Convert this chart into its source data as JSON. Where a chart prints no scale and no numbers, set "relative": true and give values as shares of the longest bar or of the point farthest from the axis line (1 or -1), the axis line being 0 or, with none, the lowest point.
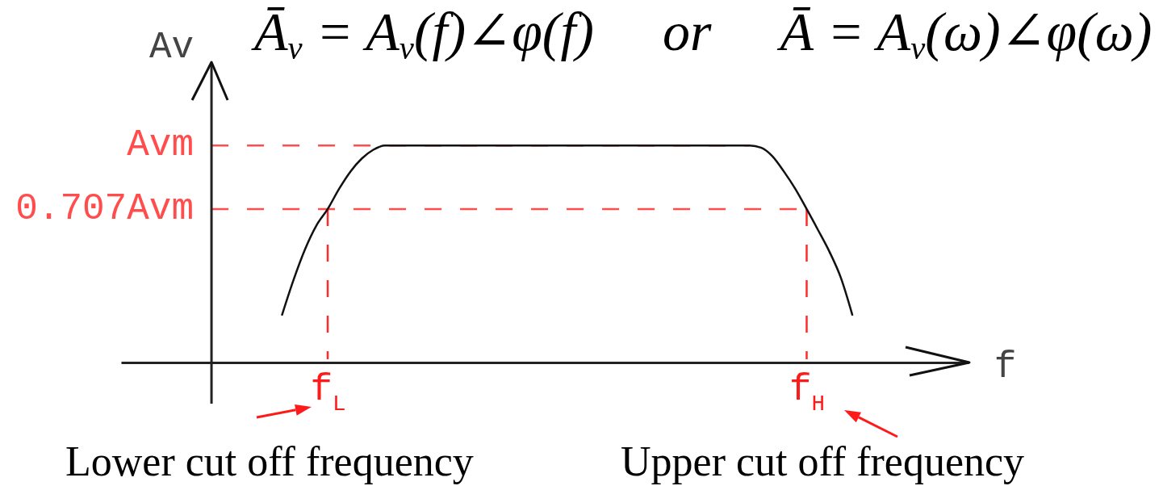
{
  "chart_data": {
    "type": "line",
    "relative": true,
    "title": "Ā$_{v}$ = A$_{v}$(f)∠φ(f)     or     Ā = A$_{v}$(ω)∠φ(ω)",
    "xlabel": "f",
    "ylabel": "Av",
    "categories": [
      null,
      null,
      null,
      null,
      "f$_{L}$",
      null,
      null,
      null,
      null,
      null,
      null,
      null,
      null,
      null,
      null,
      null,
      null,
      null,
      null,
      null,
      null,
      null,
      null,
      null,
      null,
      null,
      null,
      null,
      null,
      null,
      null,
      null,
      null,
      null,
      null,
      null,
      null,
      null,
      null,
      null,
      null,
      null,
      null,
      null,
      null,
      null,
      "f$_{H}$",
      null,
      null,
      null,
      null
    ],
    "series": [
      {
        "color": "#111111",
        "values": [
          0.22,
          0.38,
          0.52,
          0.63,
          0.707,
          0.8,
          0.88,
          0.94,
          0.98,
          1,
          1,
          1,
          1,
          1,
          1,
          1,
          1,
          1,
          1,
          1,
          1,
          1,
          1,
          1,
          1,
          1,
          1,
          1,
          1,
          1,
          1,
          1,
          1,
          1,
          1,
          1,
          1,
          1,
          1,
          1,
          1,
          1,
          0.99,
          0.95,
          0.88,
          0.8,
          0.707,
          0.61,
          0.51,
          0.39,
          0.22
        ]
      }
    ],
    "ref_lines": [
      {
        "axis": "y",
        "value": 1,
        "label": "Avm",
        "color": "#ff4d4d",
        "line_style": "dashed"
      },
      {
        "axis": "y",
        "value": 0.707,
        "label": "0.707Avm",
        "color": "#ff4d4d",
        "line_style": "dashed"
      },
      {
        "axis": "x",
        "value": "f$_{L}$",
        "color": "#ff2a2a",
        "line_style": "dashed"
      },
      {
        "axis": "x",
        "value": "f$_{H}$",
        "color": "#ff2a2a",
        "line_style": "dashed"
      }
    ],
    "annotations": [
      "Lower cut off frequency",
      "Upper cut off frequency"
    ]
  }
}
